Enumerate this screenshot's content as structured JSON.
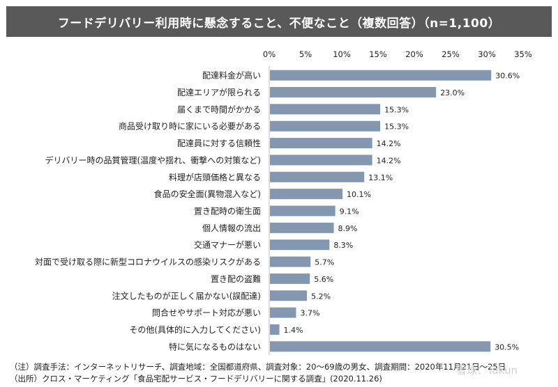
{
  "chart_data": {
    "type": "bar",
    "orientation": "horizontal",
    "title": "フードデリバリー利用時に懸念すること、不便なこと（複数回答）（n=1,100）",
    "categories": [
      "配達料金が高い",
      "配達エリアが限られる",
      "届くまで時間がかかる",
      "商品受け取り時に家にいる必要がある",
      "配達員に対する信頼性",
      "デリバリー時の品質管理(温度や揺れ、衝撃への対策など)",
      "料理が店頭価格と異なる",
      "食品の安全面(異物混入など)",
      "置き配時の衛生面",
      "個人情報の流出",
      "交通マナーが悪い",
      "対面で受け取る際に新型コロナウイルスの感染リスクがある",
      "置き配の盗難",
      "注文したものが正しく届かない(誤配達)",
      "問合せやサポート対応が悪い",
      "その他(具体的に入力してください)",
      "特に気になるものはない"
    ],
    "values": [
      30.6,
      23.0,
      15.3,
      15.3,
      14.2,
      14.2,
      13.1,
      10.1,
      9.1,
      8.9,
      8.3,
      5.7,
      5.6,
      5.2,
      3.7,
      1.4,
      30.5
    ],
    "value_labels": [
      "30.6%",
      "23.0%",
      "15.3%",
      "15.3%",
      "14.2%",
      "14.2%",
      "13.1%",
      "10.1%",
      "9.1%",
      "8.9%",
      "8.3%",
      "5.7%",
      "5.6%",
      "5.2%",
      "3.7%",
      "1.4%",
      "30.5%"
    ],
    "xticks": [
      0,
      5,
      10,
      15,
      20,
      25,
      30,
      35
    ],
    "xtick_labels": [
      "0%",
      "5%",
      "10%",
      "15%",
      "20%",
      "25%",
      "30%",
      "35%"
    ],
    "xlim": [
      0,
      35
    ],
    "xaxis_position": "top",
    "grid": false,
    "bar_color": "#8497b0"
  },
  "notes": {
    "survey": "（注）調査手法：インターネットリサーチ、調査地域：全国都道府県、調査対象：20～69歳の男女、調査期間：2020年11月21日～25日",
    "source": "（出所）クロス・マーケティング「食品宅配サービス・フードデリバリーに関する調査」(2020.11.26)"
  },
  "watermark": "雪球：Takun"
}
